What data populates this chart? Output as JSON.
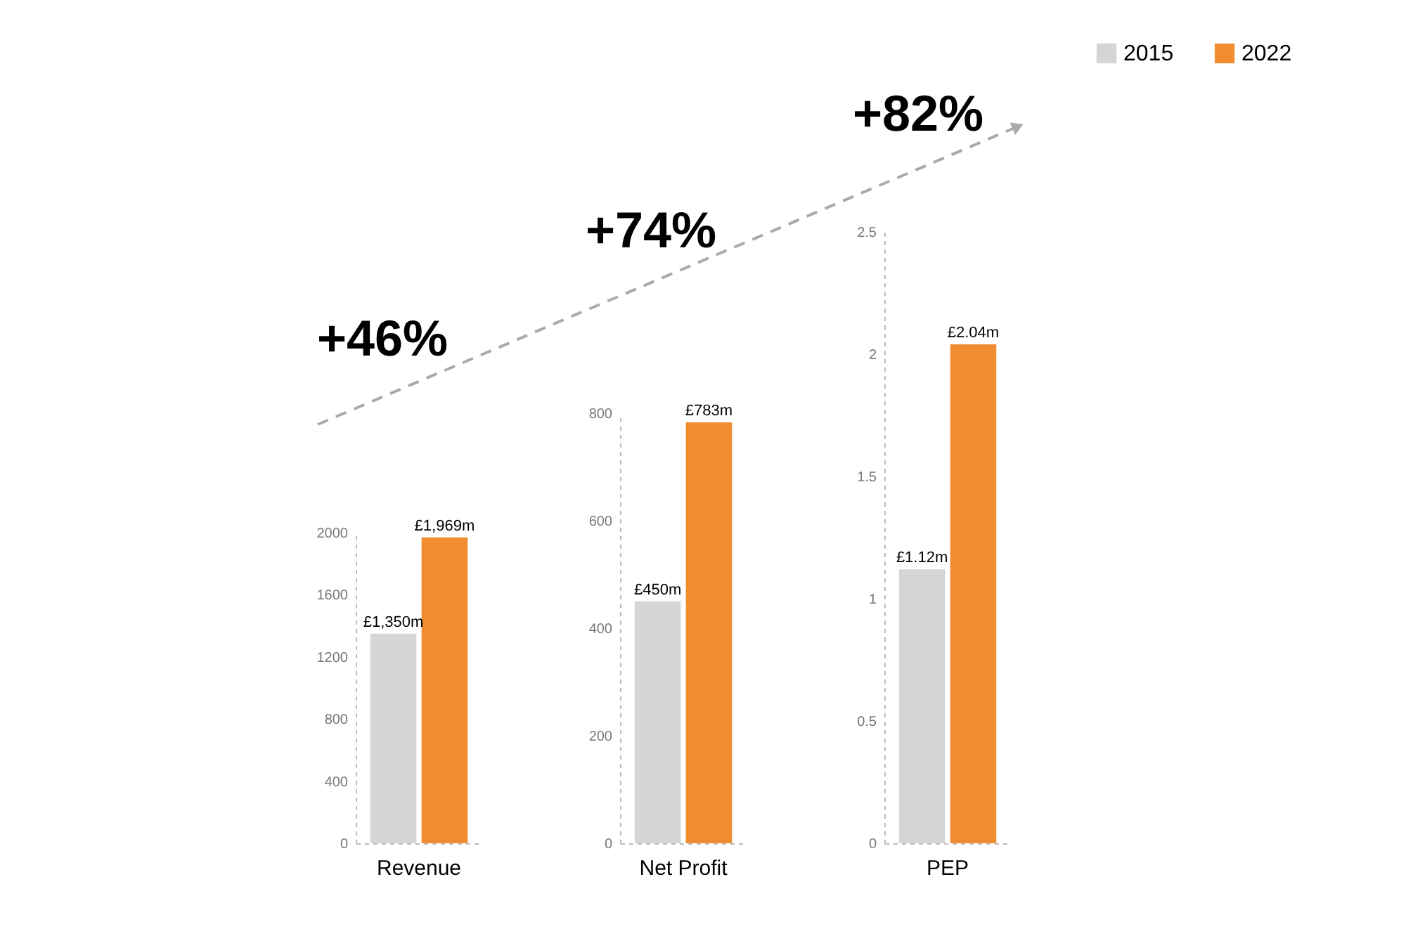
{
  "chart_data": [
    {
      "type": "bar",
      "categories": [
        "Revenue"
      ],
      "series": [
        {
          "name": "2015",
          "color": "#d5d5d7",
          "values": [
            1350
          ],
          "value_labels": [
            "£1,350m"
          ]
        },
        {
          "name": "2022",
          "color": "#f08d30",
          "values": [
            1969
          ],
          "value_labels": [
            "£1,969m"
          ]
        }
      ],
      "ylim": [
        0,
        2000
      ],
      "yticks": [
        0,
        400,
        800,
        1200,
        1600,
        2000
      ],
      "grid": false,
      "annotations": [
        "+46%"
      ],
      "legend": "top right"
    },
    {
      "type": "bar",
      "categories": [
        "Net Profit"
      ],
      "series": [
        {
          "name": "2015",
          "color": "#d5d5d7",
          "values": [
            450
          ],
          "value_labels": [
            "£450m"
          ]
        },
        {
          "name": "2022",
          "color": "#f08d30",
          "values": [
            783
          ],
          "value_labels": [
            "£783m"
          ]
        }
      ],
      "ylim": [
        0,
        800
      ],
      "yticks": [
        0,
        200,
        400,
        600,
        800
      ],
      "grid": false,
      "annotations": [
        "+74%"
      ]
    },
    {
      "type": "bar",
      "categories": [
        "PEP"
      ],
      "series": [
        {
          "name": "2015",
          "color": "#d5d5d7",
          "values": [
            1.12
          ],
          "value_labels": [
            "£1.12m"
          ]
        },
        {
          "name": "2022",
          "color": "#f08d30",
          "values": [
            2.04
          ],
          "value_labels": [
            "£2.04m"
          ]
        }
      ],
      "ylim": [
        0,
        2.5
      ],
      "yticks": [
        0,
        0.5,
        1,
        1.5,
        2,
        2.5
      ],
      "grid": false,
      "annotations": [
        "+82%"
      ]
    }
  ]
}
